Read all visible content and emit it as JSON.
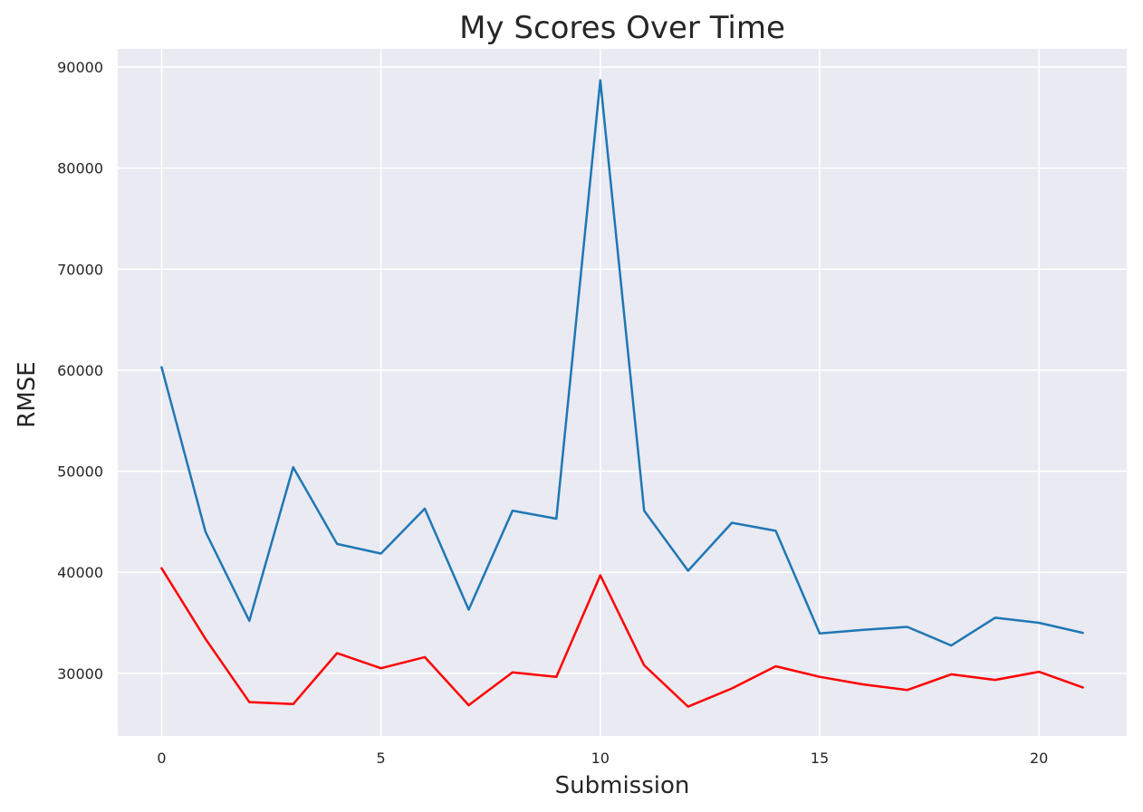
{
  "chart_data": {
    "type": "line",
    "title": "My Scores Over Time",
    "xlabel": "Submission",
    "ylabel": "RMSE",
    "xlim": [
      -1,
      22
    ],
    "ylim": [
      23800,
      91800
    ],
    "xticks": [
      0,
      5,
      10,
      15,
      20
    ],
    "yticks": [
      30000,
      40000,
      50000,
      60000,
      70000,
      80000,
      90000
    ],
    "grid": true,
    "background": "#e9eaf2",
    "grid_color": "#ffffff",
    "x": [
      0,
      1,
      2,
      3,
      4,
      5,
      6,
      7,
      8,
      9,
      10,
      11,
      12,
      13,
      14,
      15,
      16,
      17,
      18,
      19,
      20,
      21
    ],
    "series": [
      {
        "color": "#1f77b4",
        "values": [
          60300,
          44000,
          35200,
          50400,
          42800,
          41850,
          46300,
          36300,
          46100,
          45300,
          88700,
          46100,
          40150,
          44900,
          44100,
          33950,
          34300,
          34600,
          32750,
          35500,
          35000,
          34000
        ]
      },
      {
        "color": "#ff0000",
        "values": [
          40400,
          33400,
          27150,
          26950,
          32000,
          30500,
          31600,
          26850,
          30100,
          29650,
          39700,
          30800,
          26700,
          28500,
          30700,
          29650,
          28900,
          28350,
          29900,
          29350,
          30150,
          28600
        ]
      }
    ]
  }
}
